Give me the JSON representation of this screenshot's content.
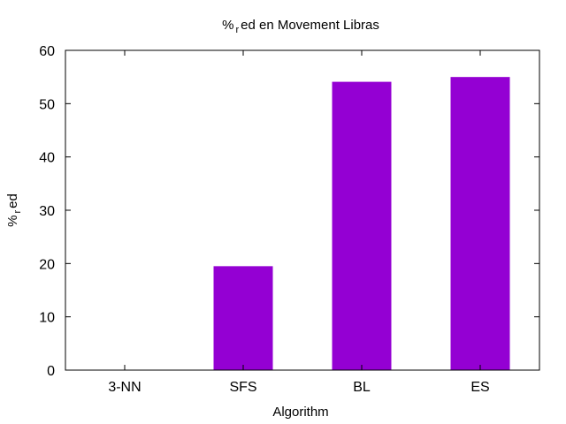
{
  "chart_data": {
    "type": "bar",
    "title": {
      "prefix": "%",
      "subscript": "r",
      "suffix": "ed en Movement Libras"
    },
    "xlabel": "Algorithm",
    "ylabel": {
      "prefix": "%",
      "subscript": "r",
      "suffix": "ed"
    },
    "categories": [
      "3-NN",
      "SFS",
      "BL",
      "ES"
    ],
    "values": [
      0,
      19.5,
      54.1,
      55.0
    ],
    "ylim": [
      0,
      60
    ],
    "yticks": [
      0,
      10,
      20,
      30,
      40,
      50,
      60
    ],
    "grid": false,
    "legend": "none",
    "bar_color": "#9400D3",
    "axis_color": "#000000"
  }
}
